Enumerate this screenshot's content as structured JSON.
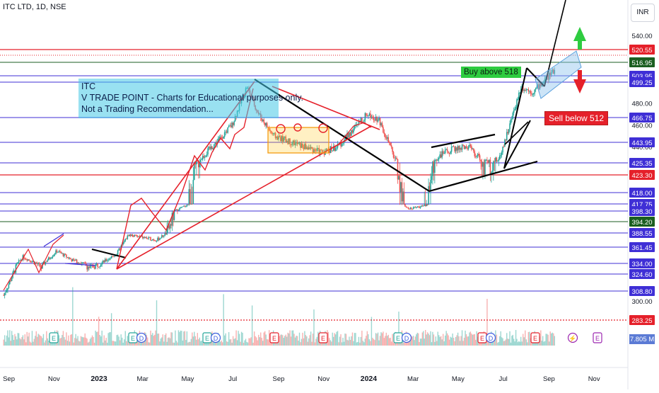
{
  "symbol_title": "ITC LTD, 1D, NSE",
  "currency_button": "INR",
  "annotations": {
    "note_lines": [
      "ITC",
      "V TRADE POINT - Charts for Educational purposes only.",
      "Not a Trading Recommendation..."
    ],
    "buy_label": "Buy above 518",
    "sell_label": "Sell below 512"
  },
  "colors": {
    "candle_up": "#26a69a",
    "candle_down": "#ef5350",
    "level_line": "#3f2fd6",
    "trend_red": "#e5202a",
    "trend_black": "#000000",
    "buy_green": "#2ecc40",
    "sell_red": "#e5202a",
    "channel_blue": "#8fc3ee"
  },
  "icons": {
    "up_arrow": "green-up-arrow-icon",
    "down_arrow": "red-down-arrow-icon",
    "earnings": "earnings-e-icon",
    "dividend": "dividend-d-icon",
    "split": "lightning-icon"
  },
  "chart_data": {
    "type": "candlestick",
    "symbol": "ITC LTD",
    "interval": "1D",
    "exchange": "NSE",
    "currency": "INR",
    "x_ticks": [
      "Sep",
      "Nov",
      "2023",
      "Mar",
      "May",
      "Jul",
      "Sep",
      "Nov",
      "2024",
      "Mar",
      "May",
      "Jul",
      "Sep",
      "Nov"
    ],
    "y_ticks": [
      540.0,
      480.0,
      460.0,
      440.0,
      300.0
    ],
    "price_levels": [
      {
        "value": 520.55,
        "color": "#e5202a"
      },
      {
        "value": 516.95,
        "color": "#1b5e20"
      },
      {
        "value": 503.95,
        "color": "#3f2fd6"
      },
      {
        "value": 499.25,
        "color": "#3f2fd6"
      },
      {
        "value": 466.75,
        "color": "#3f2fd6"
      },
      {
        "value": 443.95,
        "color": "#3f2fd6"
      },
      {
        "value": 425.35,
        "color": "#3f2fd6"
      },
      {
        "value": 423.3,
        "color": "#e5202a"
      },
      {
        "value": 418.0,
        "color": "#3f2fd6"
      },
      {
        "value": 417.75,
        "color": "#3f2fd6"
      },
      {
        "value": 398.3,
        "color": "#3f2fd6"
      },
      {
        "value": 394.2,
        "color": "#1b5e20"
      },
      {
        "value": 388.55,
        "color": "#3f2fd6"
      },
      {
        "value": 361.45,
        "color": "#3f2fd6"
      },
      {
        "value": 334.0,
        "color": "#3f2fd6"
      },
      {
        "value": 324.6,
        "color": "#3f2fd6"
      },
      {
        "value": 308.8,
        "color": "#3f2fd6"
      },
      {
        "value": 283.25,
        "color": "#e5202a"
      }
    ],
    "volume_label": "7.805 M",
    "price_path_approx": [
      [
        "2022-08-25",
        305
      ],
      [
        "2022-09-20",
        345
      ],
      [
        "2022-10-15",
        330
      ],
      [
        "2022-11-05",
        355
      ],
      [
        "2022-11-25",
        340
      ],
      [
        "2022-12-20",
        330
      ],
      [
        "2023-01-05",
        335
      ],
      [
        "2023-01-25",
        350
      ],
      [
        "2023-02-10",
        385
      ],
      [
        "2023-03-01",
        380
      ],
      [
        "2023-03-20",
        375
      ],
      [
        "2023-04-10",
        395
      ],
      [
        "2023-04-30",
        415
      ],
      [
        "2023-05-20",
        430
      ],
      [
        "2023-06-10",
        445
      ],
      [
        "2023-06-30",
        460
      ],
      [
        "2023-07-20",
        495
      ],
      [
        "2023-08-05",
        470
      ],
      [
        "2023-08-25",
        450
      ],
      [
        "2023-09-15",
        445
      ],
      [
        "2023-10-05",
        440
      ],
      [
        "2023-10-30",
        435
      ],
      [
        "2023-11-20",
        440
      ],
      [
        "2023-12-10",
        455
      ],
      [
        "2023-12-30",
        470
      ],
      [
        "2024-01-15",
        465
      ],
      [
        "2024-02-05",
        430
      ],
      [
        "2024-02-25",
        405
      ],
      [
        "2024-03-15",
        412
      ],
      [
        "2024-04-05",
        432
      ],
      [
        "2024-04-25",
        438
      ],
      [
        "2024-05-15",
        440
      ],
      [
        "2024-06-05",
        425
      ],
      [
        "2024-06-25",
        428
      ],
      [
        "2024-07-10",
        460
      ],
      [
        "2024-07-25",
        495
      ],
      [
        "2024-08-10",
        490
      ],
      [
        "2024-08-25",
        500
      ],
      [
        "2024-09-10",
        510
      ]
    ]
  }
}
